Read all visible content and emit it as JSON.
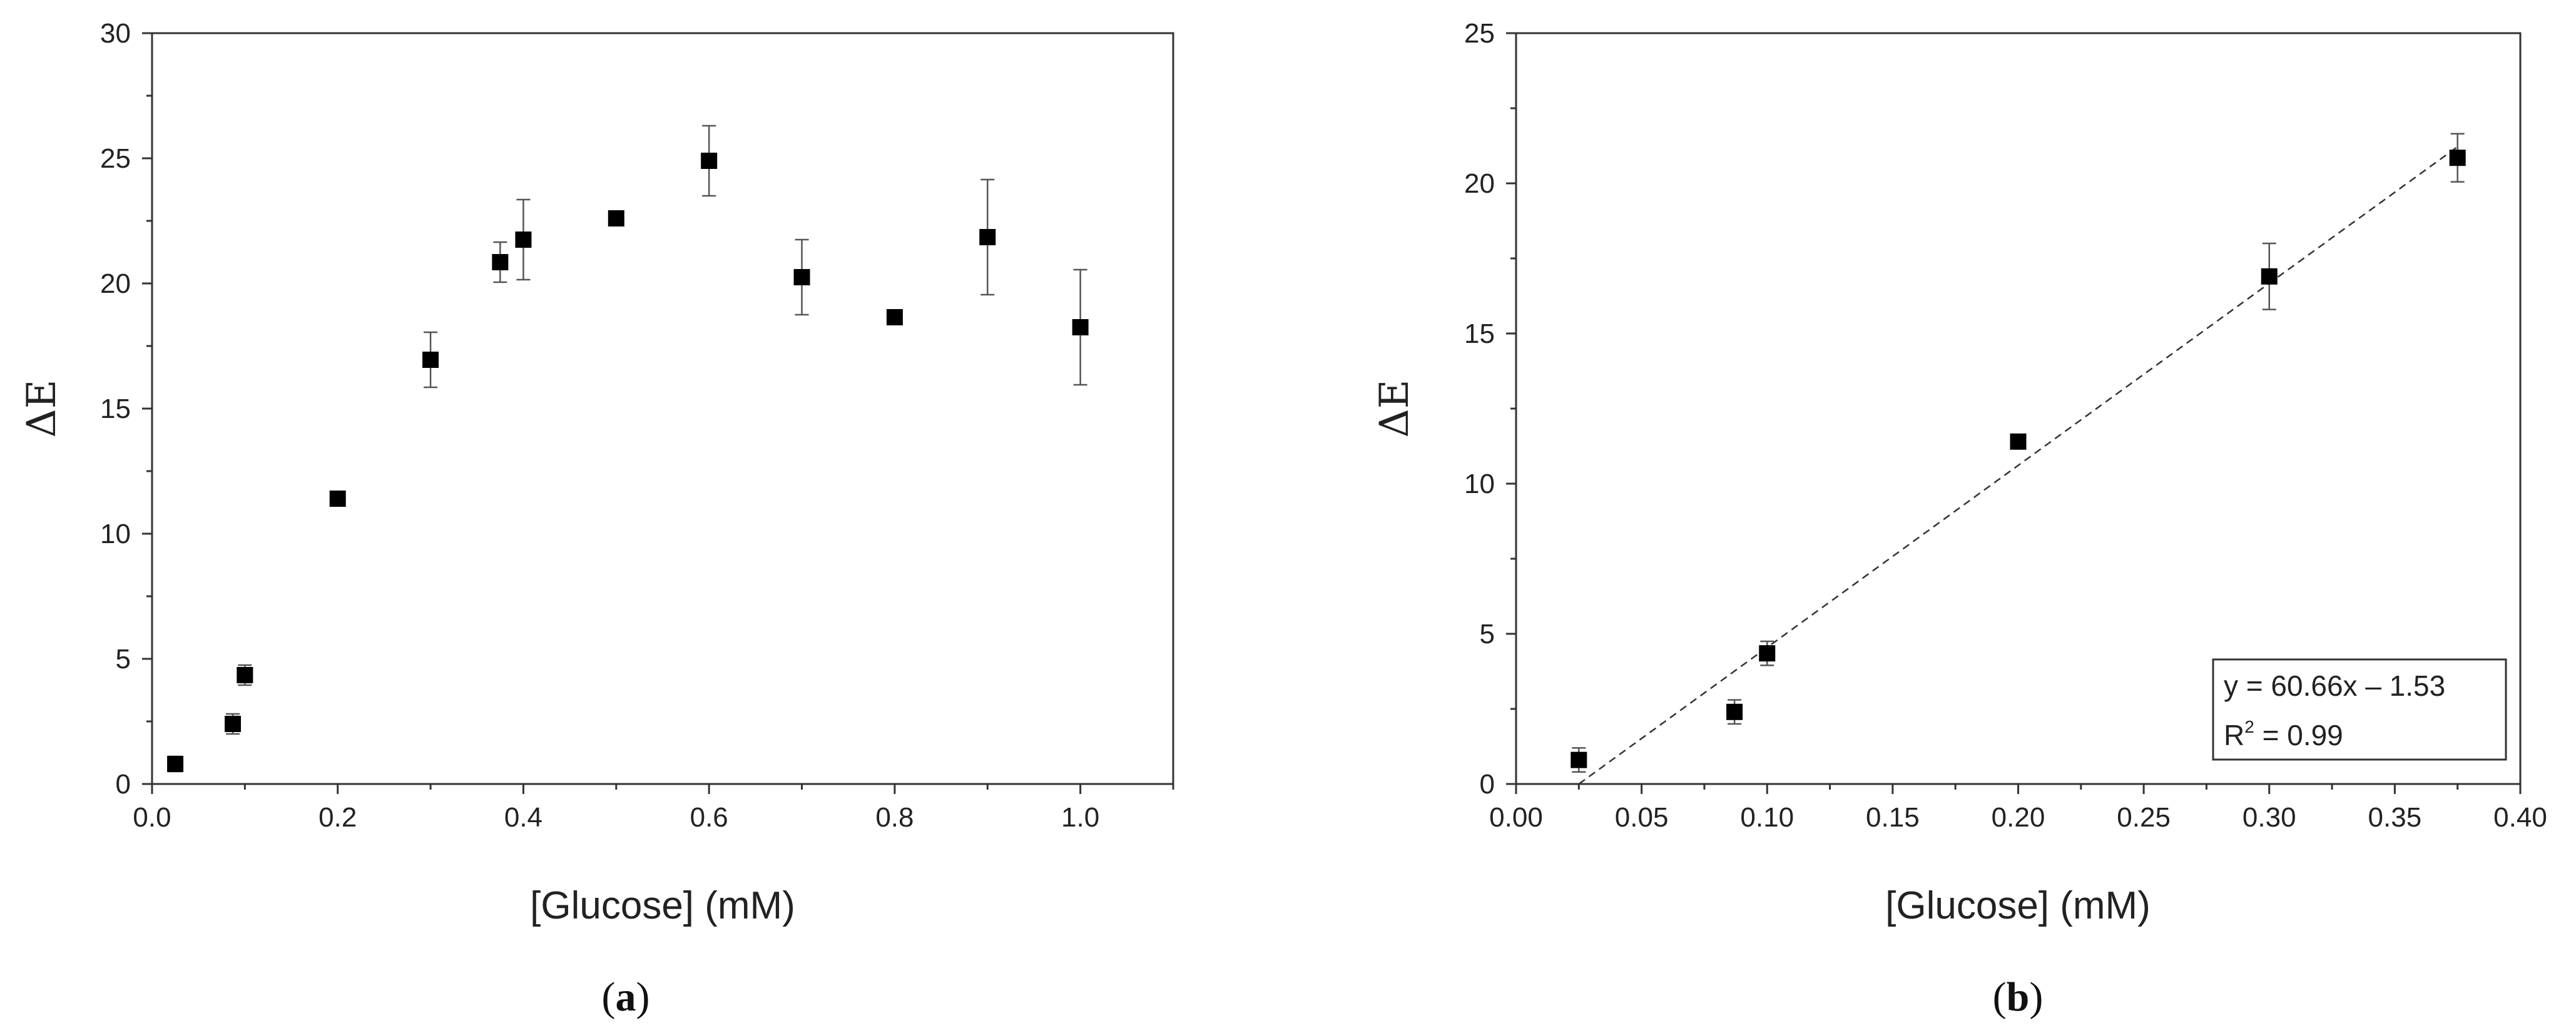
{
  "chart_data": [
    {
      "type": "scatter",
      "panel_label": {
        "open": "(",
        "letter": "a",
        "close": ")"
      },
      "xlabel": "[Glucose] (mM)",
      "ylabel": "ΔE",
      "xlim": [
        0,
        1.1
      ],
      "ylim": [
        0,
        30
      ],
      "x_ticks": [
        0.0,
        0.2,
        0.4,
        0.6,
        0.8,
        1.0
      ],
      "x_tick_labels": [
        "0.0",
        "0.2",
        "0.4",
        "0.6",
        "0.8",
        "1.0"
      ],
      "y_ticks": [
        0,
        5,
        10,
        15,
        20,
        25,
        30
      ],
      "y_tick_labels": [
        "0",
        "5",
        "10",
        "15",
        "20",
        "25",
        "30"
      ],
      "grid": false,
      "series": [
        {
          "marker": "square",
          "color": "#000000",
          "points": [
            {
              "x": 0.025,
              "y": 0.8,
              "err": 0.3
            },
            {
              "x": 0.087,
              "y": 2.4,
              "err": 0.4
            },
            {
              "x": 0.1,
              "y": 4.35,
              "err": 0.4
            },
            {
              "x": 0.2,
              "y": 11.4,
              "err": 0
            },
            {
              "x": 0.3,
              "y": 16.95,
              "err": 1.1
            },
            {
              "x": 0.375,
              "y": 20.85,
              "err": 0.8
            },
            {
              "x": 0.4,
              "y": 21.75,
              "err": 1.6
            },
            {
              "x": 0.5,
              "y": 22.6,
              "err": 0
            },
            {
              "x": 0.6,
              "y": 24.9,
              "err": 1.4
            },
            {
              "x": 0.7,
              "y": 20.25,
              "err": 1.5
            },
            {
              "x": 0.8,
              "y": 18.65,
              "err": 0
            },
            {
              "x": 0.9,
              "y": 21.85,
              "err": 2.3
            },
            {
              "x": 1.0,
              "y": 18.25,
              "err": 2.3
            }
          ]
        }
      ]
    },
    {
      "type": "scatter",
      "panel_label": {
        "open": "(",
        "letter": "b",
        "close": ")"
      },
      "xlabel": "[Glucose] (mM)",
      "ylabel": "ΔE",
      "xlim": [
        0,
        0.4
      ],
      "ylim": [
        0,
        25
      ],
      "x_ticks": [
        0.0,
        0.05,
        0.1,
        0.15,
        0.2,
        0.25,
        0.3,
        0.35,
        0.4
      ],
      "x_tick_labels": [
        "0.00",
        "0.05",
        "0.10",
        "0.15",
        "0.20",
        "0.25",
        "0.30",
        "0.35",
        "0.40"
      ],
      "y_ticks": [
        0,
        5,
        10,
        15,
        20,
        25
      ],
      "y_tick_labels": [
        "0",
        "5",
        "10",
        "15",
        "20",
        "25"
      ],
      "grid": false,
      "series": [
        {
          "marker": "square",
          "color": "#000000",
          "points": [
            {
              "x": 0.025,
              "y": 0.8,
              "err": 0.4
            },
            {
              "x": 0.087,
              "y": 2.4,
              "err": 0.4
            },
            {
              "x": 0.1,
              "y": 4.35,
              "err": 0.4
            },
            {
              "x": 0.2,
              "y": 11.4,
              "err": 0
            },
            {
              "x": 0.3,
              "y": 16.9,
              "err": 1.1
            },
            {
              "x": 0.375,
              "y": 20.85,
              "err": 0.8
            }
          ]
        }
      ],
      "fit_line": {
        "slope": 60.66,
        "intercept": -1.53,
        "x_range": [
          0.025,
          0.375
        ],
        "style": "dashed"
      },
      "legend": {
        "position": "bottom-right",
        "equation": "y = 60.66x – 1.53",
        "r2_base": "R",
        "r2_sup": "2",
        "r2_value": " = 0.99"
      }
    }
  ]
}
